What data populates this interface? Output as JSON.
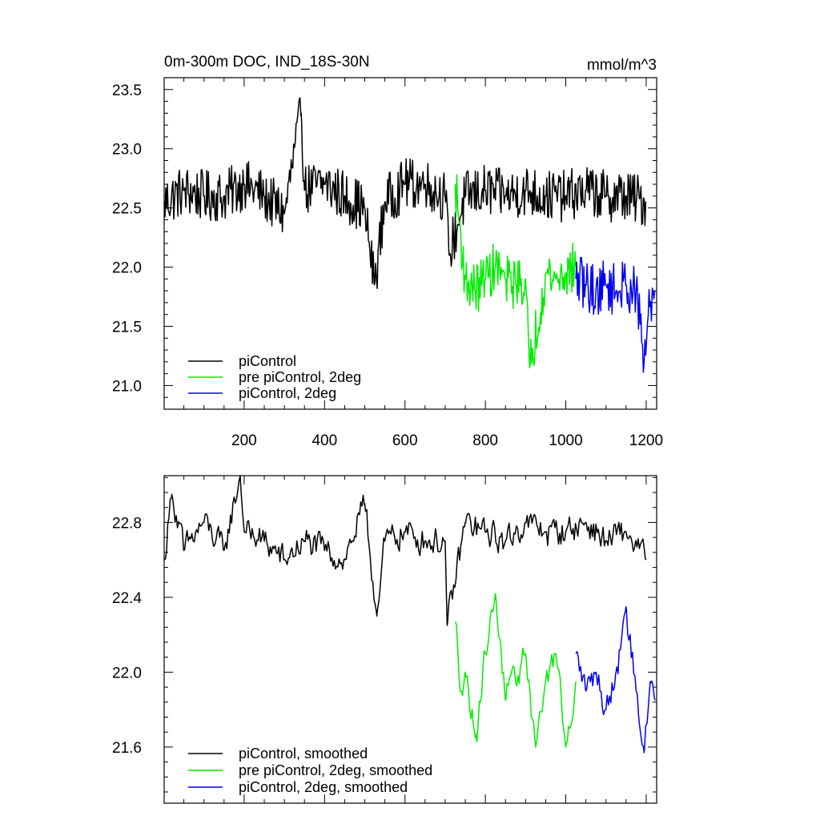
{
  "chart_data": [
    {
      "type": "line",
      "title": "0m-300m DOC, IND_18S-30N",
      "units": "mmol/m^3",
      "xlim": [
        1,
        1226
      ],
      "ylim": [
        20.8,
        23.6
      ],
      "xticks": [
        200,
        400,
        600,
        800,
        1000,
        1200
      ],
      "xtick_labels": [
        "200",
        "400",
        "600",
        "800",
        "1000",
        "1200"
      ],
      "yticks": [
        21.0,
        21.5,
        22.0,
        22.5,
        23.0,
        23.5
      ],
      "ytick_labels": [
        "21.0",
        "21.5",
        "22.0",
        "22.5",
        "23.0",
        "23.5"
      ],
      "grid": false,
      "legend_placement": "bottom-left",
      "series": [
        {
          "name": "piControl",
          "color": "#000000",
          "x": [
            1,
            50,
            100,
            150,
            200,
            250,
            300,
            342,
            350,
            400,
            450,
            500,
            524,
            550,
            600,
            650,
            700,
            710,
            750,
            800,
            850,
            900,
            950,
            1000,
            1050,
            1100,
            1150,
            1200
          ],
          "y": [
            22.55,
            22.65,
            22.6,
            22.6,
            22.7,
            22.6,
            22.45,
            23.3,
            22.65,
            22.7,
            22.6,
            22.5,
            21.85,
            22.55,
            22.7,
            22.7,
            22.6,
            22.1,
            22.6,
            22.65,
            22.6,
            22.65,
            22.6,
            22.6,
            22.65,
            22.6,
            22.6,
            22.55
          ]
        },
        {
          "name": "pre piControl, 2deg",
          "color": "#00ee00",
          "x": [
            725,
            750,
            775,
            800,
            825,
            850,
            875,
            900,
            910,
            950,
            975,
            1000,
            1025
          ],
          "y": [
            22.7,
            21.9,
            21.8,
            21.9,
            22.0,
            21.9,
            21.85,
            21.9,
            21.15,
            21.95,
            21.9,
            21.95,
            22.0
          ]
        },
        {
          "name": "piControl, 2deg",
          "color": "#0000ee",
          "x": [
            1025,
            1050,
            1075,
            1100,
            1125,
            1150,
            1175,
            1195,
            1210,
            1222
          ],
          "y": [
            21.9,
            21.85,
            21.8,
            21.85,
            21.8,
            21.85,
            21.8,
            21.2,
            21.7,
            21.8
          ]
        }
      ]
    },
    {
      "type": "line",
      "xlim": [
        1,
        1226
      ],
      "ylim": [
        21.3,
        23.05
      ],
      "xticks": [
        200,
        400,
        600,
        800,
        1000,
        1200
      ],
      "yticks": [
        21.6,
        22.0,
        22.4,
        22.8
      ],
      "ytick_labels": [
        "21.6",
        "22.0",
        "22.4",
        "22.8"
      ],
      "grid": false,
      "legend_placement": "bottom-left",
      "series": [
        {
          "name": "piControl, smoothed",
          "color": "#000000",
          "x": [
            1,
            20,
            50,
            100,
            150,
            190,
            200,
            250,
            300,
            350,
            400,
            450,
            500,
            530,
            550,
            600,
            650,
            700,
            705,
            750,
            800,
            850,
            900,
            950,
            1000,
            1050,
            1100,
            1150,
            1200
          ],
          "y": [
            22.6,
            22.95,
            22.65,
            22.8,
            22.65,
            23.05,
            22.75,
            22.7,
            22.6,
            22.7,
            22.65,
            22.6,
            22.9,
            22.3,
            22.7,
            22.75,
            22.7,
            22.7,
            22.25,
            22.8,
            22.75,
            22.7,
            22.8,
            22.75,
            22.75,
            22.8,
            22.7,
            22.75,
            22.6
          ]
        },
        {
          "name": "pre piControl, 2deg, smoothed",
          "color": "#00ee00",
          "x": [
            725,
            740,
            750,
            775,
            800,
            825,
            850,
            875,
            900,
            925,
            950,
            975,
            1000,
            1025
          ],
          "y": [
            22.27,
            21.9,
            22.0,
            21.65,
            22.1,
            22.42,
            21.85,
            21.95,
            22.1,
            21.6,
            21.95,
            22.1,
            21.6,
            21.95
          ]
        },
        {
          "name": "piControl, 2deg, smoothed",
          "color": "#0000ee",
          "x": [
            1025,
            1050,
            1075,
            1100,
            1125,
            1150,
            1175,
            1195,
            1210,
            1222
          ],
          "y": [
            22.1,
            21.9,
            22.0,
            21.8,
            22.0,
            22.35,
            21.9,
            21.57,
            21.95,
            21.85
          ]
        }
      ]
    }
  ]
}
